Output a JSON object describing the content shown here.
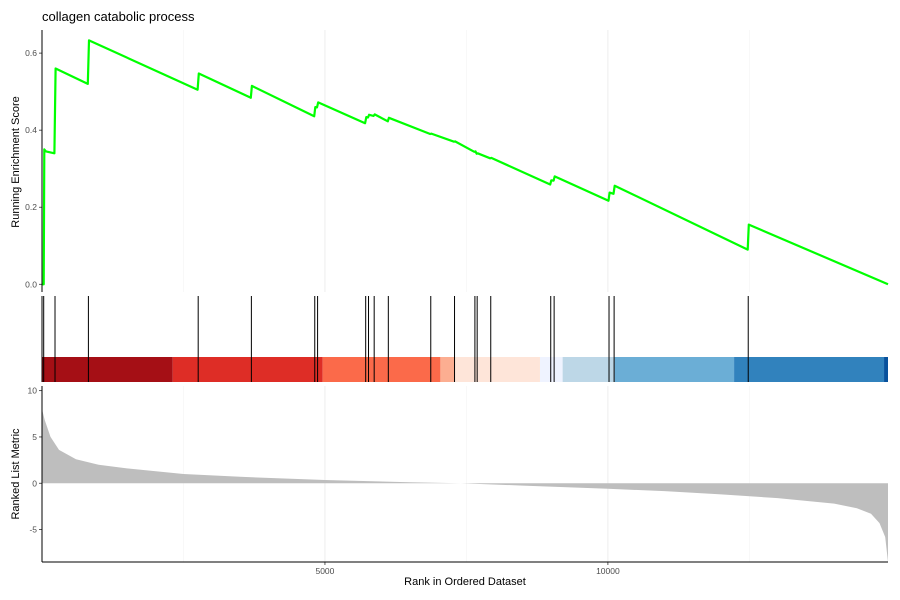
{
  "chart_data": {
    "type": "line",
    "title": "collagen catabolic process",
    "xlabel": "Rank in Ordered Dataset",
    "xlim": [
      0,
      14950
    ],
    "x_ticks": [
      5000,
      10000
    ],
    "x_tick_labels": [
      "5000",
      "10000"
    ],
    "grid": true,
    "panels": {
      "enrichment": {
        "ylabel": "Running Enrichment Score",
        "ylim": [
          -0.02,
          0.66
        ],
        "y_ticks": [
          0.0,
          0.2,
          0.4,
          0.6
        ],
        "y_tick_labels": [
          "0.0",
          "0.2",
          "0.4",
          "0.6"
        ],
        "line_color": "#00ff00",
        "series": [
          {
            "x": [
              0,
              30,
              40,
              70,
              220,
              240,
              810,
              830,
              2750,
              2770,
              3690,
              3710,
              4810,
              4830,
              4860,
              4880,
              5710,
              5730,
              5760,
              5780,
              5860,
              5880,
              6110,
              6130,
              6860,
              6880,
              7280,
              7300,
              7640,
              7660,
              7680,
              7700,
              7920,
              7940,
              8980,
              9000,
              9040,
              9060,
              10010,
              10030,
              10100,
              10120,
              12470,
              12490,
              14950
            ],
            "y": [
              0.0,
              0.0,
              0.35,
              0.345,
              0.34,
              0.56,
              0.52,
              0.633,
              0.505,
              0.547,
              0.484,
              0.515,
              0.436,
              0.46,
              0.459,
              0.472,
              0.418,
              0.434,
              0.433,
              0.44,
              0.437,
              0.441,
              0.423,
              0.432,
              0.39,
              0.391,
              0.37,
              0.371,
              0.344,
              0.345,
              0.339,
              0.34,
              0.327,
              0.328,
              0.259,
              0.27,
              0.269,
              0.28,
              0.217,
              0.238,
              0.235,
              0.256,
              0.09,
              0.155,
              0.0
            ]
          }
        ]
      },
      "gene_hits": {
        "positions": [
          30,
          230,
          820,
          2760,
          3700,
          4820,
          4870,
          5720,
          5770,
          5870,
          6120,
          6870,
          7290,
          7650,
          7690,
          7930,
          8990,
          9050,
          10020,
          10110,
          12480
        ],
        "color_bands": [
          {
            "start": 0,
            "end": 2310,
            "color": "#a50f15"
          },
          {
            "start": 2310,
            "end": 4960,
            "color": "#de2d26"
          },
          {
            "start": 4960,
            "end": 7040,
            "color": "#fb6a4a"
          },
          {
            "start": 7040,
            "end": 7300,
            "color": "#fcae91"
          },
          {
            "start": 7300,
            "end": 8800,
            "color": "#fee5d9"
          },
          {
            "start": 8800,
            "end": 9200,
            "color": "#eff3ff"
          },
          {
            "start": 9200,
            "end": 10120,
            "color": "#bdd7e7"
          },
          {
            "start": 10120,
            "end": 12230,
            "color": "#6baed6"
          },
          {
            "start": 12230,
            "end": 14880,
            "color": "#3182bd"
          },
          {
            "start": 14880,
            "end": 14950,
            "color": "#08519c"
          }
        ]
      },
      "ranked_metric": {
        "ylabel": "Ranked List Metric",
        "ylim": [
          -8.5,
          10.5
        ],
        "y_ticks": [
          10,
          5,
          0,
          -5
        ],
        "y_tick_labels": [
          "10",
          "5",
          "0",
          "-5"
        ],
        "fill_color": "#bebebe",
        "series": [
          {
            "x": [
              0,
              50,
              150,
              300,
              600,
              1000,
              1500,
              2500,
              3500,
              5000,
              6500,
              7400,
              8500,
              10000,
              11000,
              12000,
              13000,
              14000,
              14400,
              14650,
              14800,
              14900,
              14950
            ],
            "y": [
              8.0,
              6.8,
              5.0,
              3.6,
              2.6,
              2.0,
              1.6,
              1.0,
              0.7,
              0.35,
              0.1,
              0.0,
              -0.25,
              -0.6,
              -0.85,
              -1.2,
              -1.6,
              -2.2,
              -2.7,
              -3.3,
              -4.3,
              -5.8,
              -8.5
            ]
          }
        ]
      }
    }
  }
}
